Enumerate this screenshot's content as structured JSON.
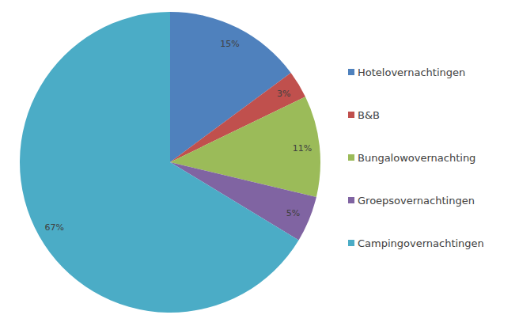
{
  "chart_data": {
    "type": "pie",
    "categories": [
      "Hotelovernachtingen",
      "B&B",
      "Bungalowovernachting",
      "Groepsovernachtingen",
      "Campingovernachtingen"
    ],
    "values": [
      15,
      3,
      11,
      5,
      67
    ],
    "value_labels": [
      "15%",
      "3%",
      "11%",
      "5%",
      "67%"
    ],
    "colors": [
      "#4f81bd",
      "#c0504d",
      "#9bbb59",
      "#8064a2",
      "#4bacc6"
    ],
    "data_labels": true,
    "legend": "right"
  }
}
